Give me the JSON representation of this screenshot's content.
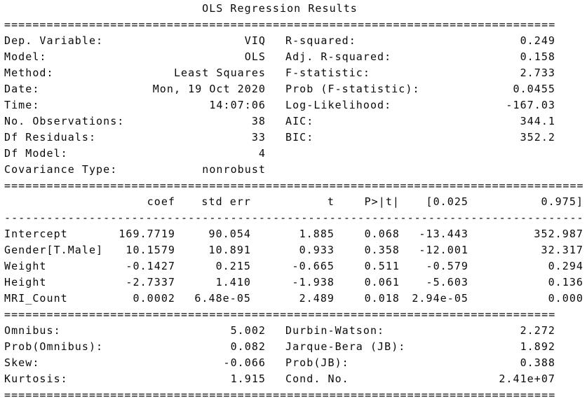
{
  "title": "OLS Regression Results",
  "separators": {
    "double_narrow": "==============================================================================",
    "double_wide": "==================================================================================",
    "single_wide": "----------------------------------------------------------------------------------"
  },
  "info_table": {
    "rows": [
      {
        "l_label": "Dep. Variable:",
        "l_value": "VIQ",
        "r_label": "R-squared:",
        "r_value": "0.249"
      },
      {
        "l_label": "Model:",
        "l_value": "OLS",
        "r_label": "Adj. R-squared:",
        "r_value": "0.158"
      },
      {
        "l_label": "Method:",
        "l_value": "Least Squares",
        "r_label": "F-statistic:",
        "r_value": "2.733"
      },
      {
        "l_label": "Date:",
        "l_value": "Mon, 19 Oct 2020",
        "r_label": "Prob (F-statistic):",
        "r_value": "0.0455"
      },
      {
        "l_label": "Time:",
        "l_value": "14:07:06",
        "r_label": "Log-Likelihood:",
        "r_value": "-167.03"
      },
      {
        "l_label": "No. Observations:",
        "l_value": "38",
        "r_label": "AIC:",
        "r_value": "344.1"
      },
      {
        "l_label": "Df Residuals:",
        "l_value": "33",
        "r_label": "BIC:",
        "r_value": "352.2"
      },
      {
        "l_label": "Df Model:",
        "l_value": "4",
        "r_label": "",
        "r_value": ""
      },
      {
        "l_label": "Covariance Type:",
        "l_value": "nonrobust",
        "r_label": "",
        "r_value": ""
      }
    ]
  },
  "coef_table": {
    "headers": [
      "",
      "coef",
      "std err",
      "t",
      "P>|t|",
      "[0.025",
      "0.975]"
    ],
    "rows": [
      [
        "Intercept",
        "169.7719",
        "90.054",
        "1.885",
        "0.068",
        "-13.443",
        "352.987"
      ],
      [
        "Gender[T.Male]",
        "10.1579",
        "10.891",
        "0.933",
        "0.358",
        "-12.001",
        "32.317"
      ],
      [
        "Weight",
        "-0.1427",
        "0.215",
        "-0.665",
        "0.511",
        "-0.579",
        "0.294"
      ],
      [
        "Height",
        "-2.7337",
        "1.410",
        "-1.938",
        "0.061",
        "-5.603",
        "0.136"
      ],
      [
        "MRI_Count",
        "0.0002",
        "6.48e-05",
        "2.489",
        "0.018",
        "2.94e-05",
        "0.000"
      ]
    ]
  },
  "diagnostics_table": {
    "rows": [
      {
        "l_label": "Omnibus:",
        "l_value": "5.002",
        "r_label": "Durbin-Watson:",
        "r_value": "2.272"
      },
      {
        "l_label": "Prob(Omnibus):",
        "l_value": "0.082",
        "r_label": "Jarque-Bera (JB):",
        "r_value": "1.892"
      },
      {
        "l_label": "Skew:",
        "l_value": "-0.066",
        "r_label": "Prob(JB):",
        "r_value": "0.388"
      },
      {
        "l_label": "Kurtosis:",
        "l_value": "1.915",
        "r_label": "Cond. No.",
        "r_value": "2.41e+07"
      }
    ]
  }
}
